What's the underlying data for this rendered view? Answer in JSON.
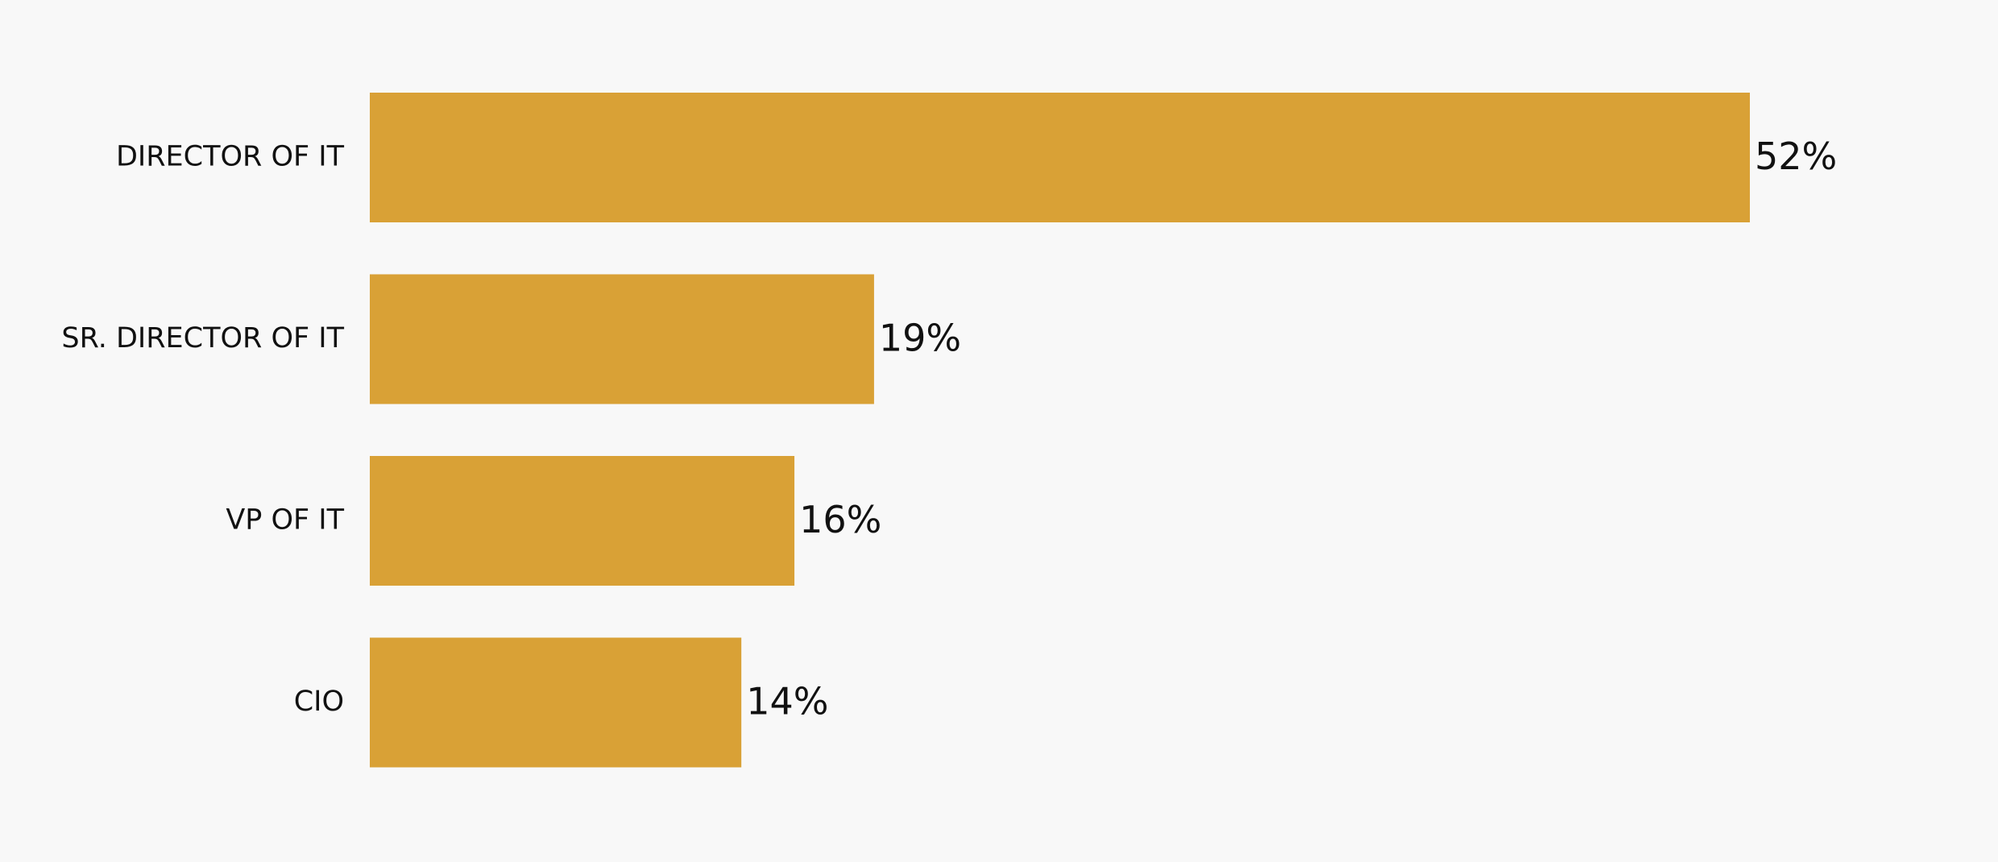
{
  "chart_data": {
    "type": "bar",
    "orientation": "horizontal",
    "categories": [
      "DIRECTOR OF IT",
      "SR. DIRECTOR OF IT",
      "VP OF IT",
      "CIO"
    ],
    "values": [
      52,
      19,
      16,
      14
    ],
    "value_labels": [
      "52%",
      "19%",
      "16%",
      "14%"
    ],
    "color": "#d9a136"
  }
}
